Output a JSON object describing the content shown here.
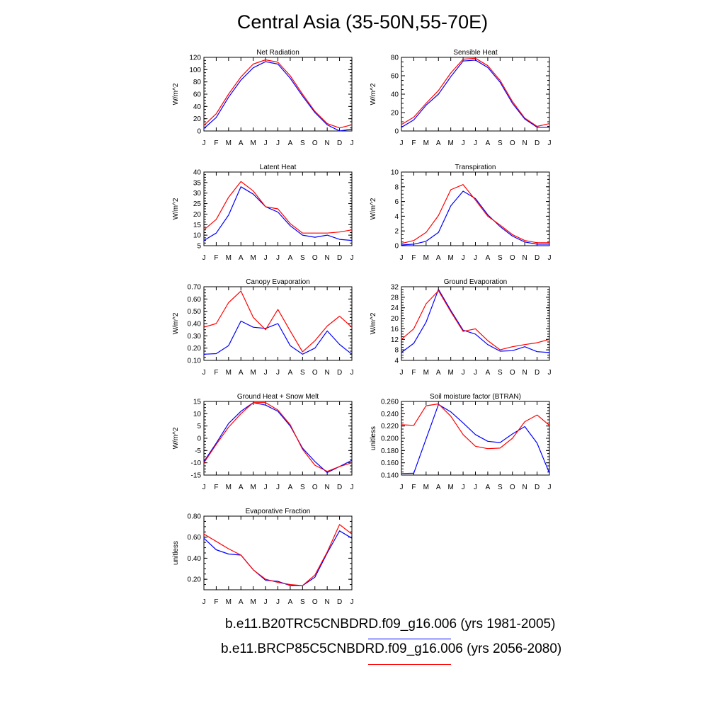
{
  "title": "Central Asia (35-50N,55-70E)",
  "months": [
    "J",
    "F",
    "M",
    "A",
    "M",
    "J",
    "J",
    "A",
    "S",
    "O",
    "N",
    "D",
    "J"
  ],
  "legend": [
    {
      "label": "b.e11.B20TRC5CNBDRD.f09_g16.006 (yrs 1981-2005)",
      "color": "#0000ff"
    },
    {
      "label": "b.e11.BRCP85C5CNBDRD.f09_g16.006 (yrs 2056-2080)",
      "color": "#ff0000"
    }
  ],
  "chart_data": [
    {
      "type": "line",
      "title": "Net Radiation",
      "ylabel": "W/m^2",
      "ylim": [
        0,
        120
      ],
      "yticks": [
        "0",
        "20",
        "40",
        "60",
        "80",
        "100",
        "120"
      ],
      "ytick_values": [
        0,
        20,
        40,
        60,
        80,
        100,
        120
      ],
      "series": [
        {
          "color": "#0000ff",
          "values": [
            4,
            22,
            55,
            83,
            103,
            113,
            109,
            86,
            57,
            30,
            10,
            0,
            3
          ]
        },
        {
          "color": "#ff0000",
          "values": [
            9,
            28,
            60,
            88,
            109,
            116,
            112,
            90,
            60,
            32,
            12,
            5,
            10
          ]
        }
      ]
    },
    {
      "type": "line",
      "title": "Sensible Heat",
      "ylabel": "W/m^2",
      "ylim": [
        0,
        80
      ],
      "yticks": [
        "0",
        "20",
        "40",
        "60",
        "80"
      ],
      "ytick_values": [
        0,
        20,
        40,
        60,
        80
      ],
      "series": [
        {
          "color": "#0000ff",
          "values": [
            4,
            12,
            28,
            40,
            59,
            76,
            77,
            69,
            53,
            30,
            13,
            4,
            4
          ]
        },
        {
          "color": "#ff0000",
          "values": [
            7,
            15,
            30,
            44,
            63,
            78,
            79,
            71,
            55,
            32,
            14,
            5,
            8
          ]
        }
      ]
    },
    {
      "type": "line",
      "title": "Latent Heat",
      "ylabel": "W/m^2",
      "ylim": [
        5,
        40
      ],
      "yticks": [
        "5",
        "10",
        "15",
        "20",
        "25",
        "30",
        "35",
        "40"
      ],
      "ytick_values": [
        5,
        10,
        15,
        20,
        25,
        30,
        35,
        40
      ],
      "series": [
        {
          "color": "#0000ff",
          "values": [
            7.5,
            11,
            19.5,
            33,
            29.5,
            23.5,
            21,
            14.5,
            10,
            9,
            10,
            8,
            7.5
          ]
        },
        {
          "color": "#ff0000",
          "values": [
            12.5,
            17.5,
            28,
            35.5,
            31,
            23.5,
            22.5,
            15.5,
            11,
            11,
            11,
            11.5,
            12.5
          ]
        }
      ]
    },
    {
      "type": "line",
      "title": "Transpiration",
      "ylabel": "W/m^2",
      "ylim": [
        0,
        10
      ],
      "yticks": [
        "0",
        "2",
        "4",
        "6",
        "8",
        "10"
      ],
      "ytick_values": [
        0,
        2,
        4,
        6,
        8,
        10
      ],
      "series": [
        {
          "color": "#0000ff",
          "values": [
            0.1,
            0.2,
            0.6,
            1.8,
            5.4,
            7.4,
            6.4,
            4.2,
            2.6,
            1.3,
            0.5,
            0.2,
            0.2
          ]
        },
        {
          "color": "#ff0000",
          "values": [
            0.3,
            0.7,
            1.8,
            4.1,
            7.6,
            8.3,
            6.2,
            4.0,
            2.8,
            1.5,
            0.7,
            0.4,
            0.4
          ]
        }
      ]
    },
    {
      "type": "line",
      "title": "Canopy Evaporation",
      "ylabel": "W/m^2",
      "ylim": [
        0.1,
        0.7
      ],
      "yticks": [
        "0.10",
        "0.20",
        "0.30",
        "0.40",
        "0.50",
        "0.60",
        "0.70"
      ],
      "ytick_values": [
        0.1,
        0.2,
        0.3,
        0.4,
        0.5,
        0.6,
        0.7
      ],
      "series": [
        {
          "color": "#0000ff",
          "values": [
            0.15,
            0.155,
            0.22,
            0.42,
            0.37,
            0.36,
            0.4,
            0.22,
            0.15,
            0.2,
            0.34,
            0.23,
            0.15
          ]
        },
        {
          "color": "#ff0000",
          "values": [
            0.37,
            0.4,
            0.57,
            0.665,
            0.45,
            0.35,
            0.515,
            0.34,
            0.17,
            0.26,
            0.38,
            0.46,
            0.37
          ]
        }
      ]
    },
    {
      "type": "line",
      "title": "Ground Evaporation",
      "ylabel": "W/m^2",
      "ylim": [
        4,
        32
      ],
      "yticks": [
        "4",
        "8",
        "12",
        "16",
        "20",
        "24",
        "28",
        "32"
      ],
      "ytick_values": [
        4,
        8,
        12,
        16,
        20,
        24,
        28,
        32
      ],
      "series": [
        {
          "color": "#0000ff",
          "values": [
            7,
            10.5,
            18.5,
            31,
            23,
            15.5,
            14,
            10,
            7.5,
            7.7,
            9.2,
            7.3,
            7
          ]
        },
        {
          "color": "#ff0000",
          "values": [
            12,
            16,
            25.5,
            30.5,
            22.5,
            15,
            16,
            11.5,
            8,
            9.2,
            10,
            10.7,
            12
          ]
        }
      ]
    },
    {
      "type": "line",
      "title": "Ground Heat + Snow Melt",
      "ylabel": "W/m^2",
      "ylim": [
        -15,
        15
      ],
      "yticks": [
        "-15",
        "-10",
        "-5",
        "0",
        "5",
        "10",
        "15"
      ],
      "ytick_values": [
        -15,
        -10,
        -5,
        0,
        5,
        10,
        15
      ],
      "series": [
        {
          "color": "#0000ff",
          "values": [
            -9.5,
            -2,
            6,
            11,
            14.5,
            13.5,
            11,
            5,
            -4,
            -9.5,
            -14,
            -11.5,
            -9
          ]
        },
        {
          "color": "#ff0000",
          "values": [
            -10,
            -2.5,
            4.5,
            10,
            14.5,
            14.5,
            11.5,
            5.5,
            -4.5,
            -11,
            -13.5,
            -11.5,
            -10
          ]
        }
      ]
    },
    {
      "type": "line",
      "title": "Soil moisture factor (BTRAN)",
      "ylabel": "unitless",
      "ylim": [
        0.14,
        0.26
      ],
      "yticks": [
        "0.140",
        "0.160",
        "0.180",
        "0.200",
        "0.220",
        "0.240",
        "0.260"
      ],
      "ytick_values": [
        0.14,
        0.16,
        0.18,
        0.2,
        0.22,
        0.24,
        0.26
      ],
      "series": [
        {
          "color": "#0000ff",
          "values": [
            0.1425,
            0.143,
            0.199,
            0.255,
            0.243,
            0.225,
            0.206,
            0.195,
            0.193,
            0.207,
            0.219,
            0.192,
            0.143
          ]
        },
        {
          "color": "#ff0000",
          "values": [
            0.222,
            0.221,
            0.253,
            0.256,
            0.236,
            0.206,
            0.187,
            0.183,
            0.184,
            0.2,
            0.227,
            0.238,
            0.221
          ]
        }
      ]
    },
    {
      "type": "line",
      "title": "Evaporative Fraction",
      "ylabel": "unitless",
      "ylim": [
        0.1,
        0.8
      ],
      "yticks": [
        "0.20",
        "0.40",
        "0.60",
        "0.80"
      ],
      "ytick_values": [
        0.2,
        0.4,
        0.6,
        0.8
      ],
      "series": [
        {
          "color": "#0000ff",
          "values": [
            0.59,
            0.48,
            0.44,
            0.43,
            0.29,
            0.19,
            0.18,
            0.14,
            0.14,
            0.22,
            0.45,
            0.66,
            0.59
          ]
        },
        {
          "color": "#ff0000",
          "values": [
            0.63,
            0.56,
            0.49,
            0.43,
            0.29,
            0.2,
            0.17,
            0.15,
            0.14,
            0.24,
            0.46,
            0.72,
            0.63
          ]
        }
      ]
    }
  ]
}
